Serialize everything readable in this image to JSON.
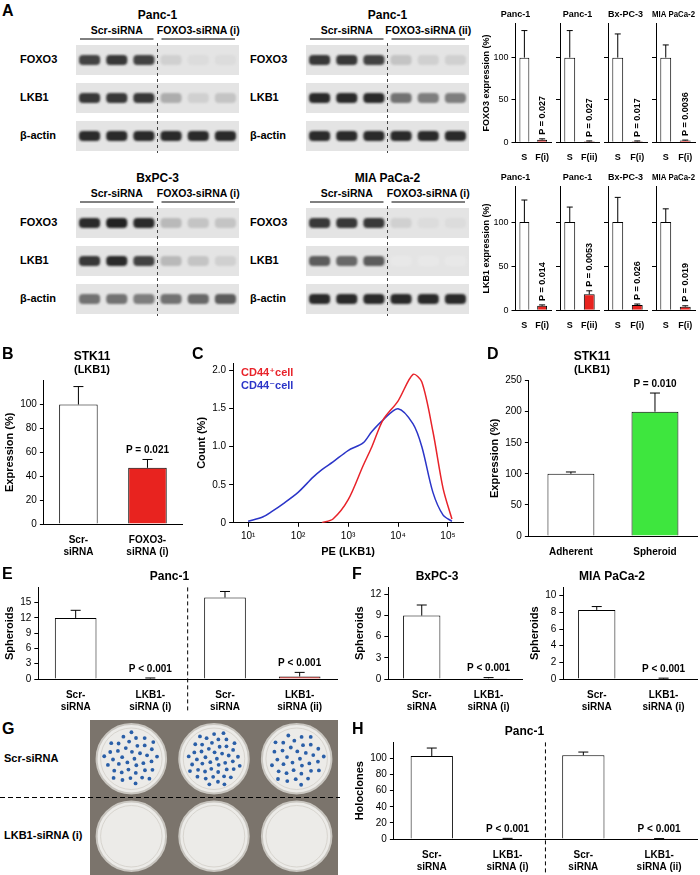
{
  "chart_data": [
    {
      "panel": "A",
      "type": "blot",
      "title": "Panc-1",
      "groups": [
        "Scr-siRNA",
        "FOXO3-siRNA (i)"
      ],
      "rows": [
        {
          "name": "FOXO3",
          "intensity": [
            0.8,
            0.85,
            0.8,
            0.2,
            0.15,
            0.15
          ]
        },
        {
          "name": "LKB1",
          "intensity": [
            0.85,
            0.85,
            0.85,
            0.35,
            0.2,
            0.25
          ]
        },
        {
          "name": "β-actin",
          "intensity": [
            0.9,
            0.9,
            0.9,
            0.9,
            0.9,
            0.9
          ]
        }
      ]
    },
    {
      "type": "blot",
      "title": "Panc-1",
      "groups": [
        "Scr-siRNA",
        "FOXO3-siRNA (ii)"
      ],
      "rows": [
        {
          "name": "FOXO3",
          "intensity": [
            0.85,
            0.85,
            0.8,
            0.25,
            0.2,
            0.2
          ]
        },
        {
          "name": "LKB1",
          "intensity": [
            0.9,
            0.9,
            0.9,
            0.6,
            0.55,
            0.55
          ]
        },
        {
          "name": "β-actin",
          "intensity": [
            0.9,
            0.9,
            0.9,
            0.9,
            0.9,
            0.9
          ]
        }
      ]
    },
    {
      "type": "blot",
      "title": "BxPC-3",
      "groups": [
        "Scr-siRNA",
        "FOXO3-siRNA (i)"
      ],
      "rows": [
        {
          "name": "FOXO3",
          "intensity": [
            0.9,
            0.95,
            0.9,
            0.3,
            0.25,
            0.25
          ]
        },
        {
          "name": "LKB1",
          "intensity": [
            0.85,
            0.9,
            0.8,
            0.3,
            0.25,
            0.2
          ]
        },
        {
          "name": "β-actin",
          "intensity": [
            0.6,
            0.6,
            0.55,
            0.6,
            0.65,
            0.7
          ]
        }
      ]
    },
    {
      "type": "blot",
      "title": "MIA PaCa-2",
      "groups": [
        "Scr-siRNA",
        "FOXO3-siRNA (i)"
      ],
      "rows": [
        {
          "name": "FOXO3",
          "intensity": [
            0.85,
            0.85,
            0.85,
            0.2,
            0.15,
            0.15
          ]
        },
        {
          "name": "LKB1",
          "intensity": [
            0.7,
            0.65,
            0.7,
            0.1,
            0.1,
            0.1
          ]
        },
        {
          "name": "β-actin",
          "intensity": [
            0.9,
            0.9,
            0.9,
            0.9,
            0.9,
            0.9
          ]
        }
      ]
    },
    {
      "type": "bar",
      "title": "Panc-1",
      "ylabel": "FOXO3 expression (%)",
      "categories": [
        "S",
        "F(i)"
      ],
      "values": [
        100,
        3
      ],
      "errors": [
        32,
        1
      ],
      "annotations": [
        null,
        "P = 0.027"
      ],
      "colors": [
        "#ffffff",
        "#e8231f"
      ],
      "ylim": [
        0,
        140
      ],
      "yticks": [
        0,
        50,
        100
      ],
      "grid": false
    },
    {
      "type": "bar",
      "title": "Panc-1",
      "categories": [
        "S",
        "F(ii)"
      ],
      "values": [
        100,
        1
      ],
      "errors": [
        32,
        0.5
      ],
      "annotations": [
        null,
        "P = 0.027"
      ],
      "colors": [
        "#ffffff",
        "#e8231f"
      ],
      "ylim": [
        0,
        140
      ],
      "yticks": [
        0,
        50,
        100
      ],
      "grid": false,
      "tick_labels": "x"
    },
    {
      "type": "bar",
      "title": "Bx-PC-3",
      "categories": [
        "S",
        "F(i)"
      ],
      "values": [
        100,
        1
      ],
      "errors": [
        28,
        0.5
      ],
      "annotations": [
        null,
        "P = 0.017"
      ],
      "colors": [
        "#ffffff",
        "#e8231f"
      ],
      "ylim": [
        0,
        140
      ],
      "yticks": [
        0,
        50,
        100
      ],
      "grid": false,
      "tick_labels": "x"
    },
    {
      "type": "bar",
      "title": "MIA PaCa-2",
      "categories": [
        "S",
        "F(i)"
      ],
      "values": [
        100,
        2
      ],
      "errors": [
        15,
        0.5
      ],
      "annotations": [
        null,
        "P = 0.0036"
      ],
      "colors": [
        "#ffffff",
        "#e8231f"
      ],
      "ylim": [
        0,
        140
      ],
      "yticks": [
        0,
        50,
        100
      ],
      "grid": false,
      "tick_labels": "x"
    },
    {
      "type": "bar",
      "title": "Panc-1",
      "ylabel": "LKB1 expression (%)",
      "categories": [
        "S",
        "F(i)"
      ],
      "values": [
        100,
        5
      ],
      "errors": [
        25,
        1
      ],
      "annotations": [
        null,
        "P = 0.014"
      ],
      "colors": [
        "#ffffff",
        "#e8231f"
      ],
      "ylim": [
        0,
        140
      ],
      "yticks": [
        0,
        50,
        100
      ],
      "grid": false
    },
    {
      "type": "bar",
      "title": "Panc-1",
      "categories": [
        "S",
        "F(ii)"
      ],
      "values": [
        100,
        18
      ],
      "errors": [
        17,
        4
      ],
      "annotations": [
        null,
        "P = 0.0053"
      ],
      "colors": [
        "#ffffff",
        "#e8231f"
      ],
      "ylim": [
        0,
        140
      ],
      "yticks": [
        0,
        50,
        100
      ],
      "grid": false,
      "tick_labels": "x"
    },
    {
      "type": "bar",
      "title": "Bx-PC-3",
      "categories": [
        "S",
        "F(i)"
      ],
      "values": [
        100,
        6
      ],
      "errors": [
        28,
        1
      ],
      "annotations": [
        null,
        "P = 0.026"
      ],
      "colors": [
        "#ffffff",
        "#e8231f"
      ],
      "ylim": [
        0,
        140
      ],
      "yticks": [
        0,
        50,
        100
      ],
      "grid": false,
      "tick_labels": "x"
    },
    {
      "type": "bar",
      "title": "MIA PaCa-2",
      "categories": [
        "S",
        "F(i)"
      ],
      "values": [
        100,
        4
      ],
      "errors": [
        15,
        1
      ],
      "annotations": [
        null,
        "P = 0.019"
      ],
      "colors": [
        "#ffffff",
        "#e8231f"
      ],
      "ylim": [
        0,
        140
      ],
      "yticks": [
        0,
        50,
        100
      ],
      "grid": false,
      "tick_labels": "x"
    },
    {
      "panel": "B",
      "type": "bar",
      "title": "STK11",
      "subtitle": "(LKB1)",
      "ylabel": "Expression (%)",
      "categories": [
        "Scr-siRNA",
        "FOXO3-siRNA (i)"
      ],
      "values": [
        100,
        47
      ],
      "errors": [
        15,
        7
      ],
      "annotations": [
        null,
        "P = 0.021"
      ],
      "colors": [
        "#ffffff",
        "#e8231f"
      ],
      "ylim": [
        0,
        120
      ],
      "yticks": [
        0,
        20,
        40,
        60,
        80,
        100
      ],
      "grid": false
    },
    {
      "panel": "C",
      "type": "line",
      "xlabel": "PE (LKB1)",
      "ylabel": "Count (%)",
      "log": "x",
      "x": [
        10,
        20,
        30,
        50,
        100,
        200,
        300,
        500,
        1000,
        2000,
        3000,
        5000,
        10000,
        20000,
        30000,
        50000,
        80000,
        120000
      ],
      "series": [
        {
          "name": "CD44⁺cell",
          "color": "#e8232a",
          "values": [
            null,
            null,
            null,
            null,
            null,
            null,
            0,
            0.05,
            0.3,
            0.75,
            1.0,
            1.35,
            1.6,
            1.95,
            1.85,
            1.2,
            0.45,
            0.05
          ]
        },
        {
          "name": "CD44⁻cell",
          "color": "#2b35c8",
          "values": [
            0.02,
            0.08,
            0.15,
            0.25,
            0.4,
            0.6,
            0.7,
            0.8,
            0.95,
            1.05,
            1.2,
            1.35,
            1.5,
            1.3,
            1.0,
            0.4,
            0.1,
            0.02
          ]
        }
      ],
      "xlim": [
        5,
        200000
      ],
      "xticks": [
        {
          "value": 10,
          "label": "10¹"
        },
        {
          "value": 100,
          "label": "10²"
        },
        {
          "value": 1000,
          "label": "10³"
        },
        {
          "value": 10000,
          "label": "10⁴"
        },
        {
          "value": 100000,
          "label": "10⁵"
        }
      ],
      "ylim": [
        0,
        2.1
      ],
      "yticks": [
        0,
        0.5,
        {
          "value": 1,
          "label": "1.0"
        },
        1.5,
        {
          "value": 2,
          "label": "2.0"
        }
      ],
      "legend": "upper left",
      "grid": false
    },
    {
      "panel": "D",
      "type": "bar",
      "title": "STK11",
      "subtitle": "(LKB1)",
      "ylabel": "Expression (%)",
      "categories": [
        "Adherent",
        "Spheroid"
      ],
      "values": [
        100,
        200
      ],
      "errors": [
        3,
        30
      ],
      "annotations": [
        null,
        "P = 0.010"
      ],
      "colors": [
        "#ffffff",
        "#3ee63e"
      ],
      "ylim": [
        0,
        250
      ],
      "yticks": [
        0,
        50,
        100,
        150,
        200,
        250
      ],
      "grid": false
    },
    {
      "panel": "E",
      "type": "bar",
      "title": "Panc-1",
      "ylabel": "Spheroids",
      "categories": [
        "Scr-siRNA",
        "LKB1-siRNA (i)",
        "Scr-siRNA",
        "LKB1-siRNA (ii)"
      ],
      "values": [
        12,
        0.1,
        16,
        0.5
      ],
      "errors": [
        1.5,
        0.1,
        1.2,
        0.8
      ],
      "annotations": [
        null,
        "P < 0.001",
        null,
        "P < 0.001"
      ],
      "colors": [
        "#ffffff",
        "#e8231f",
        "#ffffff",
        "#e8231f"
      ],
      "ylim": [
        0,
        18
      ],
      "yticks": [
        0,
        3,
        6,
        9,
        12,
        15
      ],
      "grid": false
    },
    {
      "panel": "F",
      "type": "bar",
      "title": "BxPC-3",
      "ylabel": "Spheroids",
      "categories": [
        "Scr-siRNA",
        "LKB1-siRNA (i)"
      ],
      "values": [
        9,
        0.1
      ],
      "errors": [
        1.5,
        0.1
      ],
      "annotations": [
        null,
        "P < 0.001"
      ],
      "colors": [
        "#ffffff",
        "#e8231f"
      ],
      "ylim": [
        0,
        13
      ],
      "yticks": [
        0,
        3,
        6,
        9,
        12
      ],
      "grid": false
    },
    {
      "type": "bar",
      "title": "MIA PaCa-2",
      "ylabel": "Spheroids",
      "categories": [
        "Scr-siRNA",
        "LKB1-siRNA (i)"
      ],
      "values": [
        8.3,
        0.05
      ],
      "errors": [
        0.4,
        0.05
      ],
      "annotations": [
        null,
        "P < 0.001"
      ],
      "colors": [
        "#ffffff",
        "#e8231f"
      ],
      "ylim": [
        0,
        11
      ],
      "yticks": [
        0,
        2,
        4,
        6,
        8,
        10
      ],
      "grid": false
    },
    {
      "panel": "G",
      "type": "photo",
      "rows": [
        {
          "label": "Scr-siRNA",
          "colonies": [
            40,
            46,
            36
          ]
        },
        {
          "label": "LKB1-siRNA (i)",
          "colonies": [
            0,
            0,
            0
          ]
        }
      ]
    },
    {
      "panel": "H",
      "type": "bar",
      "title": "Panc-1",
      "ylabel": "Holoclones",
      "categories": [
        "Scr-siRNA",
        "LKB1-siRNA (i)",
        "Scr-siRNA",
        "LKB1-siRNA (ii)"
      ],
      "values": [
        103,
        0.5,
        104,
        0.3
      ],
      "errors": [
        10,
        0.3,
        4,
        0.2
      ],
      "annotations": [
        null,
        "P < 0.001",
        null,
        "P < 0.001"
      ],
      "colors": [
        "#ffffff",
        "#e8231f",
        "#ffffff",
        "#e8231f"
      ],
      "ylim": [
        0,
        120
      ],
      "yticks": [
        0,
        20,
        40,
        60,
        80,
        100
      ],
      "grid": false
    }
  ]
}
